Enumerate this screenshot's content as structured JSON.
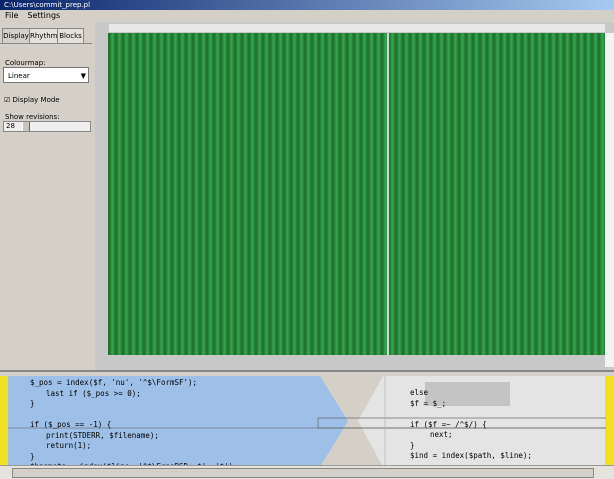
{
  "window_title": "C:\\Users\\commit_prep.pl",
  "menu": [
    "File",
    "Settings"
  ],
  "tabs": [
    "Display",
    "Rhythm",
    "Blocks"
  ],
  "sidebar": {
    "colourmap_label": "Colourmap:",
    "colourmap_value": "Linear",
    "display_mode": "Display Mode",
    "show_revisions_label": "Show revisions:",
    "revision_value": "28"
  },
  "code_left": [
    "$_pos = index($f, 'nu', '^$\\FormSF');",
    "last if ($_pos >= 0);",
    "}",
    "",
    "if ($_pos == -1) {",
    "print(STDERR, $filename);",
    "return(1);",
    "}",
    "$hasmeta = index($line, '^$\\FreeBSD: $', '$');"
  ],
  "code_right": [
    "else",
    "$f = $_;",
    "",
    "if ($f =~ /^$/) {",
    "next;",
    "}",
    "$ind = index($path, $line);"
  ]
}
